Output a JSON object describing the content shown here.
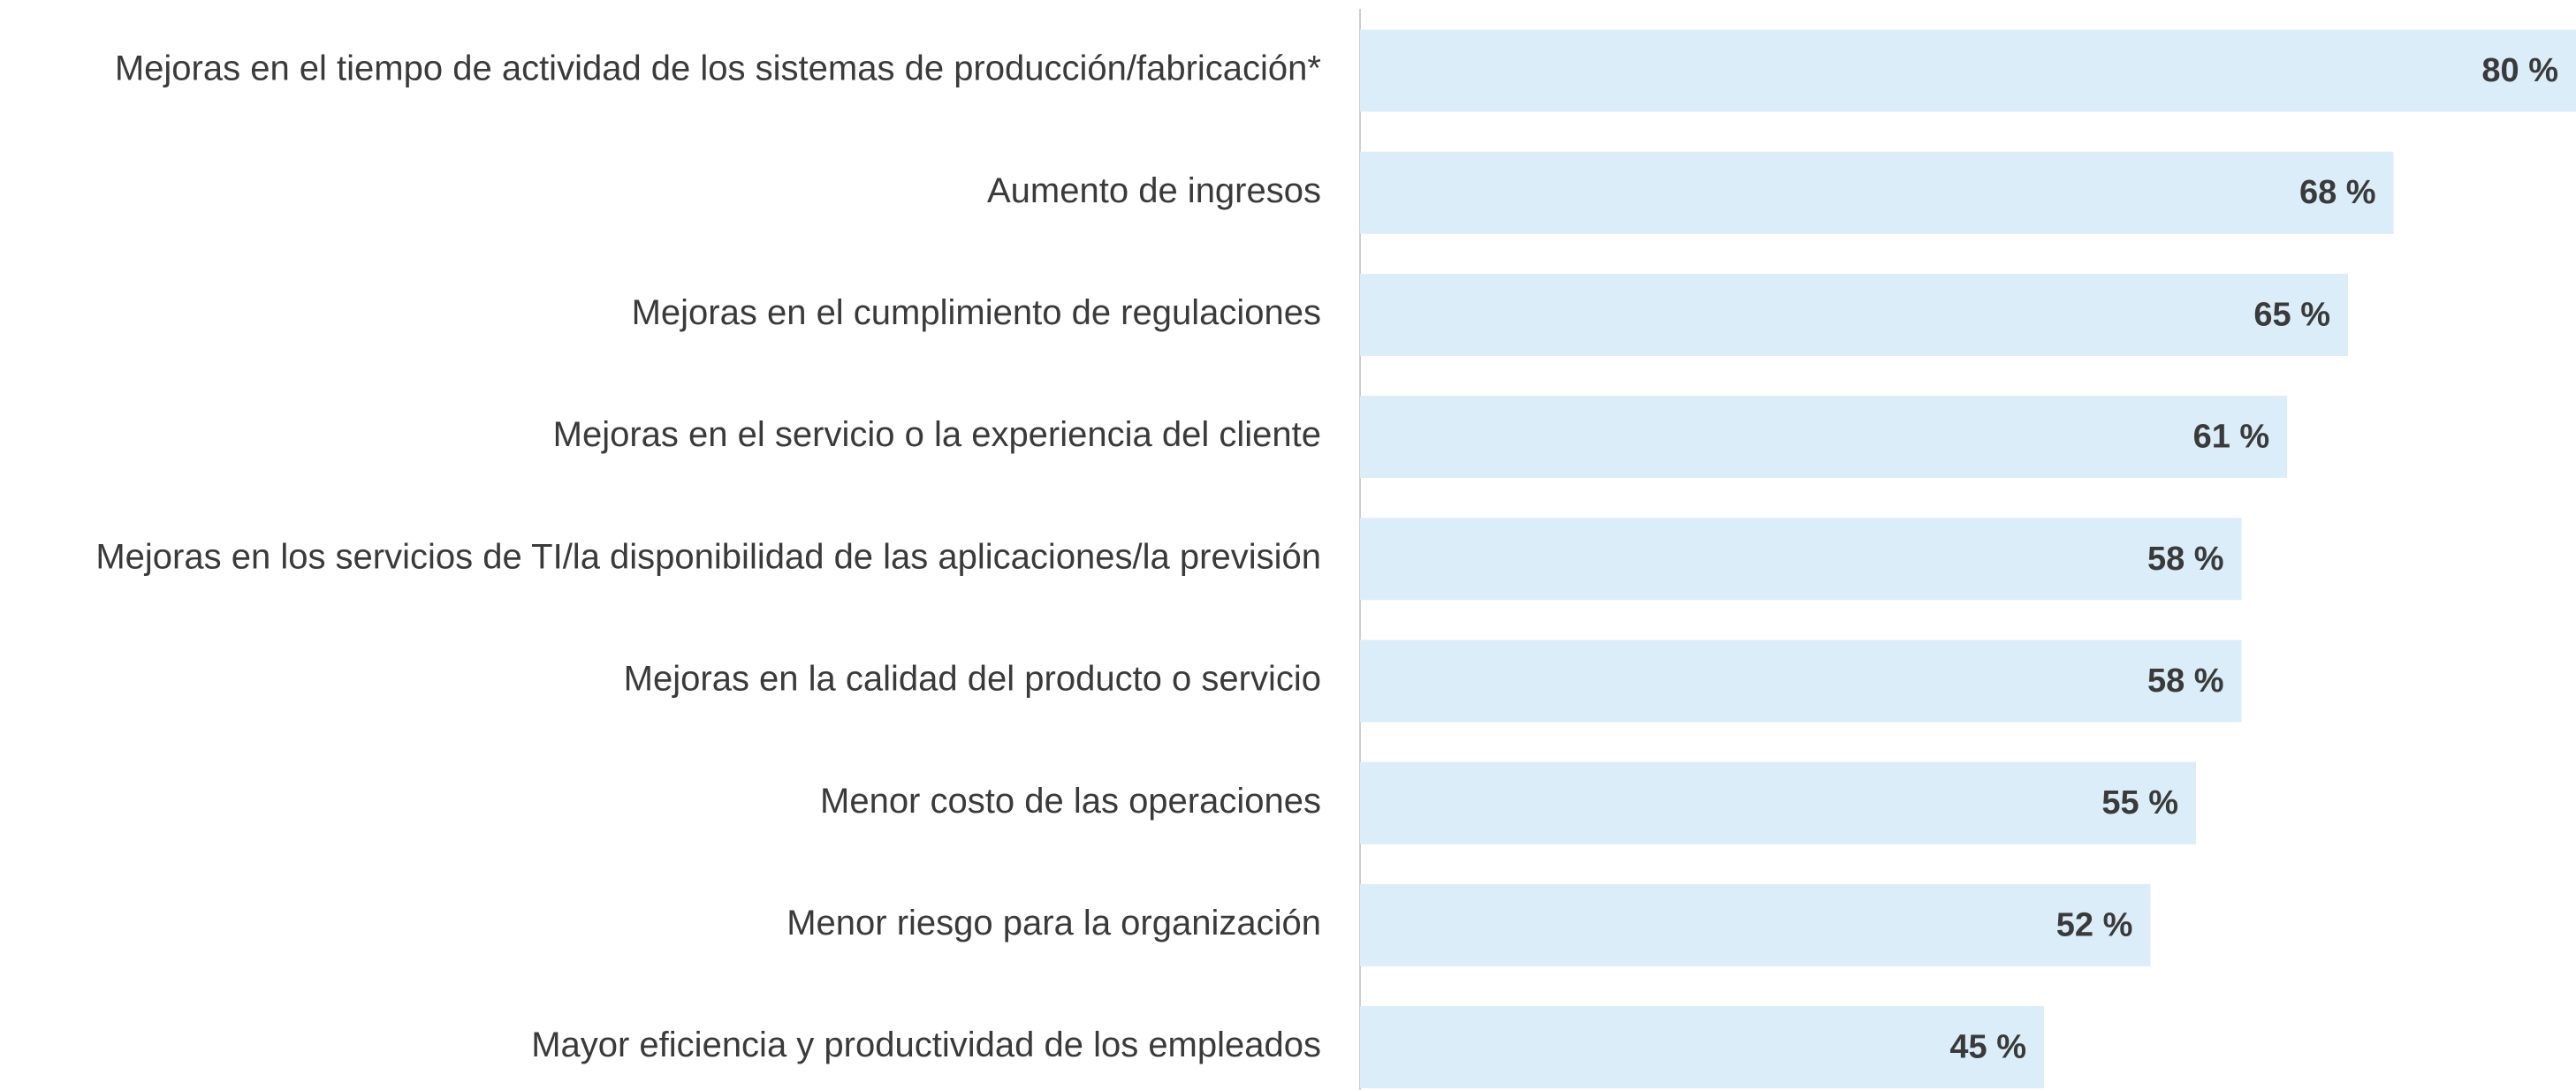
{
  "chart_data": {
    "type": "bar",
    "orientation": "horizontal",
    "categories": [
      "Mejoras en el tiempo de actividad de los sistemas de producción/fabricación*",
      "Aumento de ingresos",
      "Mejoras en el cumplimiento de regulaciones",
      "Mejoras en el servicio o la experiencia del cliente",
      "Mejoras en los servicios de TI/la disponibilidad de las aplicaciones/la previsión",
      "Mejoras en la calidad del producto o servicio",
      "Menor costo de las operaciones",
      "Menor riesgo para la organización",
      "Mayor eficiencia y productividad de los empleados"
    ],
    "values": [
      80,
      68,
      65,
      61,
      58,
      58,
      55,
      52,
      45
    ],
    "value_labels": [
      "80 %",
      "68 %",
      "65 %",
      "61 %",
      "58 %",
      "58 %",
      "55 %",
      "52 %",
      "45 %"
    ],
    "color": "#daedf8"
  }
}
